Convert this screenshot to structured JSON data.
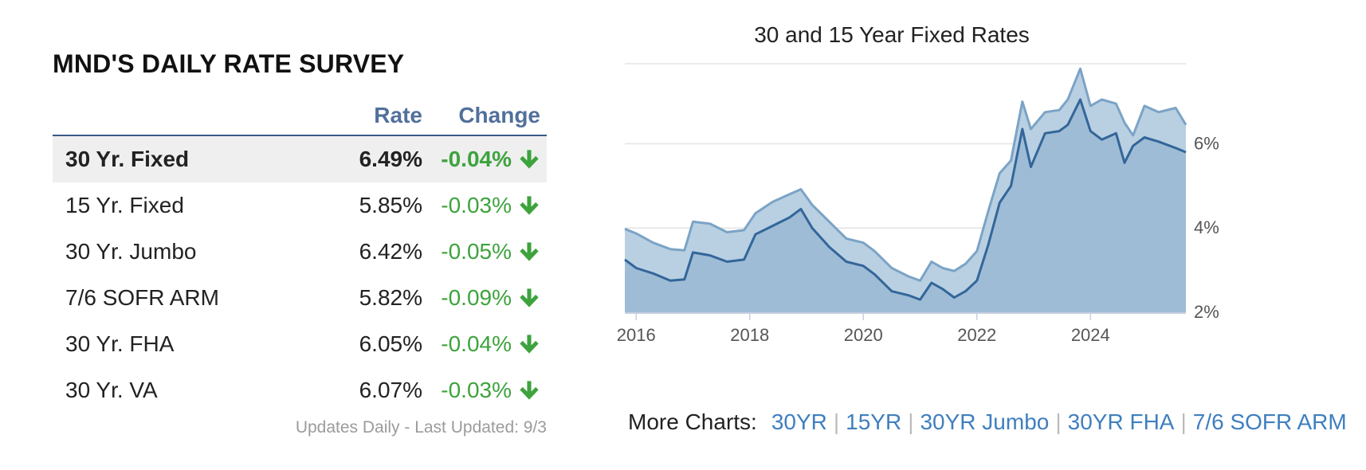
{
  "survey": {
    "title_prefix": "MND'S",
    "title_bold": "DAILY RATE SURVEY",
    "col_rate": "Rate",
    "col_change": "Change",
    "rows": [
      {
        "name": "30 Yr. Fixed",
        "rate": "6.49%",
        "change": "-0.04%"
      },
      {
        "name": "15 Yr. Fixed",
        "rate": "5.85%",
        "change": "-0.03%"
      },
      {
        "name": "30 Yr. Jumbo",
        "rate": "6.42%",
        "change": "-0.05%"
      },
      {
        "name": "7/6 SOFR ARM",
        "rate": "5.82%",
        "change": "-0.09%"
      },
      {
        "name": "30 Yr. FHA",
        "rate": "6.05%",
        "change": "-0.04%"
      },
      {
        "name": "30 Yr. VA",
        "rate": "6.07%",
        "change": "-0.03%"
      }
    ],
    "updated": "Updates Daily - Last Updated: 9/3",
    "change_color": "#3da33d",
    "arrow_icon": "down-arrow-icon"
  },
  "more_charts": {
    "label": "More Charts:",
    "links": [
      "30YR",
      "15YR",
      "30YR Jumbo",
      "30YR FHA",
      "7/6 SOFR ARM"
    ],
    "link_color": "#3f7fbf"
  },
  "chart_data": {
    "type": "area",
    "title": "30 and 15 Year Fixed Rates",
    "xlabel": "",
    "ylabel": "",
    "x_ticks": [
      "2016",
      "2018",
      "2020",
      "2022",
      "2024"
    ],
    "y_ticks": [
      "2%",
      "4%",
      "6%"
    ],
    "xlim": [
      2015.8,
      2025.68
    ],
    "ylim": [
      2.0,
      7.9
    ],
    "grid": true,
    "legend": "none",
    "series": [
      {
        "color": "#7ba3c6",
        "fill": "#b9d0e2",
        "x": [
          2015.8,
          2016.0,
          2016.3,
          2016.6,
          2016.85,
          2017.0,
          2017.3,
          2017.6,
          2017.9,
          2018.1,
          2018.4,
          2018.7,
          2018.9,
          2019.1,
          2019.4,
          2019.7,
          2020.0,
          2020.2,
          2020.5,
          2020.8,
          2021.0,
          2021.2,
          2021.4,
          2021.6,
          2021.8,
          2022.0,
          2022.2,
          2022.4,
          2022.6,
          2022.8,
          2022.95,
          2023.2,
          2023.45,
          2023.6,
          2023.82,
          2024.0,
          2024.2,
          2024.45,
          2024.6,
          2024.75,
          2024.95,
          2025.2,
          2025.5,
          2025.68
        ],
        "y": [
          3.98,
          3.87,
          3.65,
          3.5,
          3.47,
          4.15,
          4.1,
          3.9,
          3.95,
          4.35,
          4.62,
          4.8,
          4.92,
          4.55,
          4.15,
          3.75,
          3.65,
          3.45,
          3.05,
          2.85,
          2.75,
          3.2,
          3.05,
          2.98,
          3.15,
          3.45,
          4.4,
          5.3,
          5.6,
          7.0,
          6.35,
          6.75,
          6.8,
          7.05,
          7.78,
          6.9,
          7.05,
          6.95,
          6.5,
          6.2,
          6.9,
          6.75,
          6.85,
          6.45
        ]
      },
      {
        "color": "#336699",
        "fill": "#9fbcd6",
        "x": [
          2015.8,
          2016.0,
          2016.3,
          2016.6,
          2016.85,
          2017.0,
          2017.3,
          2017.6,
          2017.9,
          2018.1,
          2018.4,
          2018.7,
          2018.9,
          2019.1,
          2019.4,
          2019.7,
          2020.0,
          2020.2,
          2020.5,
          2020.8,
          2021.0,
          2021.2,
          2021.4,
          2021.6,
          2021.8,
          2022.0,
          2022.2,
          2022.4,
          2022.6,
          2022.8,
          2022.95,
          2023.2,
          2023.45,
          2023.6,
          2023.82,
          2024.0,
          2024.2,
          2024.45,
          2024.6,
          2024.75,
          2024.95,
          2025.2,
          2025.5,
          2025.68
        ],
        "y": [
          3.25,
          3.05,
          2.92,
          2.75,
          2.78,
          3.42,
          3.35,
          3.2,
          3.25,
          3.85,
          4.05,
          4.25,
          4.45,
          4.0,
          3.55,
          3.2,
          3.1,
          2.9,
          2.5,
          2.4,
          2.3,
          2.7,
          2.55,
          2.35,
          2.5,
          2.75,
          3.6,
          4.6,
          5.0,
          6.35,
          5.45,
          6.25,
          6.3,
          6.45,
          7.05,
          6.3,
          6.1,
          6.25,
          5.55,
          5.95,
          6.15,
          6.05,
          5.9,
          5.8
        ]
      }
    ]
  }
}
